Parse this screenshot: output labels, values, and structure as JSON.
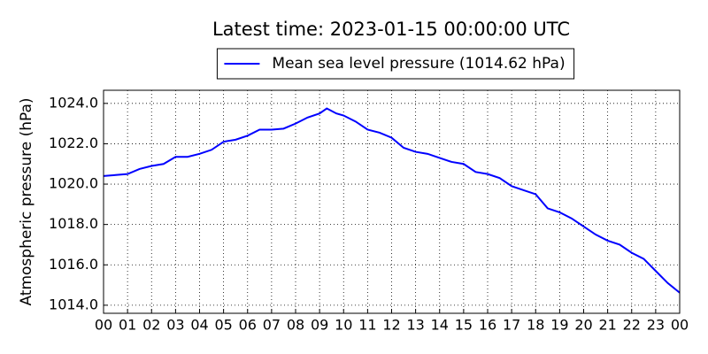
{
  "chart_data": {
    "type": "line",
    "title": "Latest time: 2023-01-15 00:00:00 UTC",
    "y_label": "Atmospheric pressure (hPa)",
    "x": [
      0,
      0.5,
      1,
      1.5,
      2,
      2.5,
      3,
      3.5,
      4,
      4.5,
      5,
      5.5,
      6,
      6.5,
      7,
      7.5,
      8,
      8.5,
      9,
      9.3,
      9.7,
      10,
      10.5,
      11,
      11.5,
      12,
      12.5,
      13,
      13.5,
      14,
      14.5,
      15,
      15.5,
      16,
      16.5,
      17,
      17.5,
      18,
      18.5,
      19,
      19.5,
      20,
      20.5,
      21,
      21.5,
      22,
      22.5,
      23,
      23.5,
      24
    ],
    "series": [
      {
        "name": "Mean sea level pressure (1014.62 hPa)",
        "color": "#0000ff",
        "values": [
          1020.4,
          1020.45,
          1020.5,
          1020.75,
          1020.9,
          1021.0,
          1021.35,
          1021.35,
          1021.5,
          1021.7,
          1022.1,
          1022.2,
          1022.4,
          1022.7,
          1022.7,
          1022.75,
          1023.0,
          1023.3,
          1023.5,
          1023.75,
          1023.5,
          1023.4,
          1023.1,
          1022.7,
          1022.55,
          1022.3,
          1021.8,
          1021.6,
          1021.5,
          1021.3,
          1021.1,
          1021.0,
          1020.6,
          1020.5,
          1020.3,
          1019.9,
          1019.7,
          1019.5,
          1018.8,
          1018.6,
          1018.3,
          1017.9,
          1017.5,
          1017.2,
          1017.0,
          1016.6,
          1016.3,
          1015.7,
          1015.1,
          1014.62
        ]
      }
    ],
    "xlim": [
      0,
      24
    ],
    "xticks": [
      {
        "value": 0,
        "label": "00"
      },
      {
        "value": 1,
        "label": "01"
      },
      {
        "value": 2,
        "label": "02"
      },
      {
        "value": 3,
        "label": "03"
      },
      {
        "value": 4,
        "label": "04"
      },
      {
        "value": 5,
        "label": "05"
      },
      {
        "value": 6,
        "label": "06"
      },
      {
        "value": 7,
        "label": "07"
      },
      {
        "value": 8,
        "label": "08"
      },
      {
        "value": 9,
        "label": "09"
      },
      {
        "value": 10,
        "label": "10"
      },
      {
        "value": 11,
        "label": "11"
      },
      {
        "value": 12,
        "label": "12"
      },
      {
        "value": 13,
        "label": "13"
      },
      {
        "value": 14,
        "label": "14"
      },
      {
        "value": 15,
        "label": "15"
      },
      {
        "value": 16,
        "label": "16"
      },
      {
        "value": 17,
        "label": "17"
      },
      {
        "value": 18,
        "label": "18"
      },
      {
        "value": 19,
        "label": "19"
      },
      {
        "value": 20,
        "label": "20"
      },
      {
        "value": 21,
        "label": "21"
      },
      {
        "value": 22,
        "label": "22"
      },
      {
        "value": 23,
        "label": "23"
      },
      {
        "value": 24,
        "label": "00"
      }
    ],
    "ylim": [
      1013.6,
      1024.65
    ],
    "yticks": [
      {
        "value": 1014,
        "label": "1014.0"
      },
      {
        "value": 1016,
        "label": "1016.0"
      },
      {
        "value": 1018,
        "label": "1018.0"
      },
      {
        "value": 1020,
        "label": "1020.0"
      },
      {
        "value": 1022,
        "label": "1022.0"
      },
      {
        "value": 1024,
        "label": "1024.0"
      }
    ],
    "grid": true,
    "legend": "top"
  }
}
